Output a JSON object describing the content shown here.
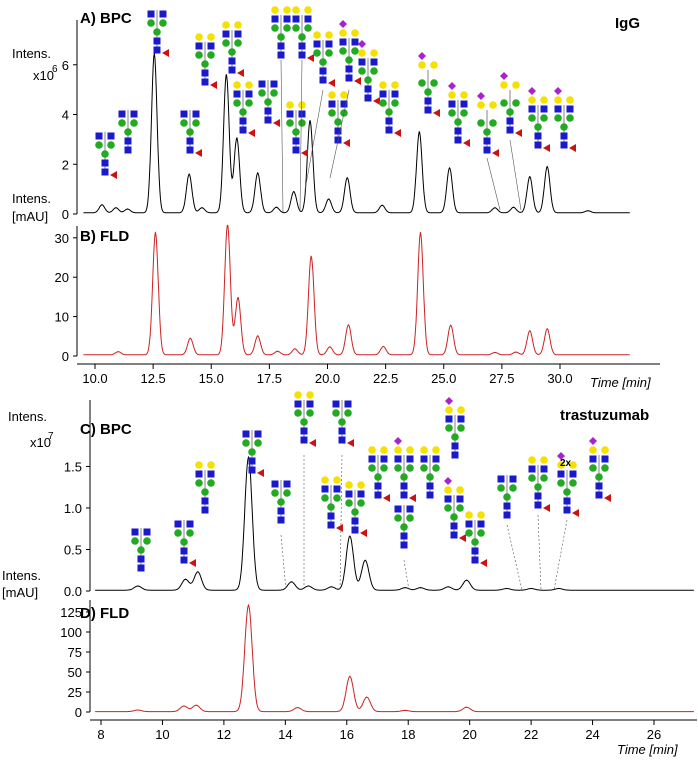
{
  "chart_data": [
    {
      "panel": "A",
      "type": "line",
      "title": "A) BPC",
      "sample": "IgG",
      "ylabel": "Intens.",
      "yunit": "x10",
      "yexp": "6",
      "ylim": [
        0,
        7.8
      ],
      "xlim": [
        9.5,
        33.0
      ],
      "yticks": [
        0,
        2,
        4,
        6
      ],
      "ytick_labels": [
        "0",
        "2",
        "4",
        "6"
      ],
      "color": "#000000",
      "baseline": 0.05,
      "peaks": [
        {
          "t": 10.3,
          "h": 0.32
        },
        {
          "t": 10.9,
          "h": 0.2
        },
        {
          "t": 11.4,
          "h": 0.15
        },
        {
          "t": 12.55,
          "h": 6.4
        },
        {
          "t": 14.05,
          "h": 1.55
        },
        {
          "t": 14.6,
          "h": 0.2
        },
        {
          "t": 15.65,
          "h": 5.55
        },
        {
          "t": 16.1,
          "h": 3.0
        },
        {
          "t": 17.0,
          "h": 1.6
        },
        {
          "t": 17.8,
          "h": 0.22
        },
        {
          "t": 18.55,
          "h": 0.85
        },
        {
          "t": 19.25,
          "h": 3.7
        },
        {
          "t": 20.05,
          "h": 0.55
        },
        {
          "t": 20.85,
          "h": 1.4
        },
        {
          "t": 22.35,
          "h": 0.3
        },
        {
          "t": 23.95,
          "h": 3.25
        },
        {
          "t": 25.25,
          "h": 1.8
        },
        {
          "t": 27.2,
          "h": 0.2
        },
        {
          "t": 28.0,
          "h": 0.22
        },
        {
          "t": 28.7,
          "h": 1.45
        },
        {
          "t": 29.45,
          "h": 1.85
        },
        {
          "t": 31.2,
          "h": 0.08
        }
      ]
    },
    {
      "panel": "B",
      "type": "line",
      "title": "B) FLD",
      "ylabel": "Intens.",
      "yunit": "[mAU]",
      "ylim": [
        0,
        33
      ],
      "xlim": [
        9.5,
        33.0
      ],
      "yticks": [
        0,
        10,
        20,
        30
      ],
      "ytick_labels": [
        "0",
        "10",
        "20",
        "30"
      ],
      "xticks": [
        10,
        12.5,
        15,
        17.5,
        20,
        22.5,
        25,
        27.5,
        30
      ],
      "xtick_labels": [
        "10.0",
        "12.5",
        "15.0",
        "17.5",
        "20.0",
        "22.5",
        "25.0",
        "27.5",
        "30.0"
      ],
      "xlabel": "Time [min]",
      "color": "#cc2222",
      "baseline": 0.3,
      "peaks": [
        {
          "t": 11.0,
          "h": 0.8
        },
        {
          "t": 12.6,
          "h": 31.0
        },
        {
          "t": 14.1,
          "h": 4.2
        },
        {
          "t": 15.7,
          "h": 33.0
        },
        {
          "t": 16.15,
          "h": 14.5
        },
        {
          "t": 17.0,
          "h": 4.8
        },
        {
          "t": 17.85,
          "h": 0.9
        },
        {
          "t": 18.6,
          "h": 1.5
        },
        {
          "t": 19.3,
          "h": 25.0
        },
        {
          "t": 20.1,
          "h": 2.0
        },
        {
          "t": 20.9,
          "h": 7.6
        },
        {
          "t": 22.4,
          "h": 2.1
        },
        {
          "t": 24.0,
          "h": 31.0
        },
        {
          "t": 25.3,
          "h": 7.5
        },
        {
          "t": 27.2,
          "h": 0.6
        },
        {
          "t": 28.1,
          "h": 0.7
        },
        {
          "t": 28.7,
          "h": 6.1
        },
        {
          "t": 29.45,
          "h": 6.6
        }
      ]
    },
    {
      "panel": "C",
      "type": "line",
      "title": "C) BPC",
      "sample": "trastuzumab",
      "ylabel": "Intens.",
      "yunit": "x10",
      "yexp": "7",
      "ylim": [
        0,
        2.3
      ],
      "xlim": [
        7.5,
        27.3
      ],
      "yticks": [
        0.0,
        0.5,
        1.0,
        1.5
      ],
      "ytick_labels": [
        "0.0",
        "0.5",
        "1.0",
        "1.5"
      ],
      "color": "#000000",
      "baseline": 0.01,
      "peaks": [
        {
          "t": 9.2,
          "h": 0.05
        },
        {
          "t": 10.75,
          "h": 0.13
        },
        {
          "t": 11.15,
          "h": 0.22
        },
        {
          "t": 12.8,
          "h": 1.6
        },
        {
          "t": 14.2,
          "h": 0.1
        },
        {
          "t": 14.75,
          "h": 0.05
        },
        {
          "t": 15.5,
          "h": 0.04
        },
        {
          "t": 16.1,
          "h": 0.65
        },
        {
          "t": 16.6,
          "h": 0.36
        },
        {
          "t": 17.9,
          "h": 0.03
        },
        {
          "t": 18.4,
          "h": 0.03
        },
        {
          "t": 19.3,
          "h": 0.04
        },
        {
          "t": 19.9,
          "h": 0.12
        },
        {
          "t": 21.2,
          "h": 0.02
        },
        {
          "t": 22.0,
          "h": 0.02
        },
        {
          "t": 22.9,
          "h": 0.02
        }
      ]
    },
    {
      "panel": "D",
      "type": "line",
      "title": "D) FLD",
      "ylabel": "",
      "ylim": [
        0,
        140
      ],
      "xlim": [
        7.5,
        27.3
      ],
      "yticks": [
        0,
        25,
        50,
        75,
        100,
        125
      ],
      "ytick_labels": [
        "0",
        "25",
        "50",
        "75",
        "100",
        "125"
      ],
      "xticks": [
        8,
        10,
        12,
        14,
        16,
        18,
        20,
        22,
        24,
        26
      ],
      "xtick_labels": [
        "8",
        "10",
        "12",
        "14",
        "16",
        "18",
        "20",
        "22",
        "24",
        "26"
      ],
      "xlabel": "Time [min]",
      "color": "#cc2222",
      "baseline": 0.5,
      "peaks": [
        {
          "t": 9.2,
          "h": 2.0
        },
        {
          "t": 10.7,
          "h": 7.0
        },
        {
          "t": 11.1,
          "h": 8.0
        },
        {
          "t": 12.8,
          "h": 133.0
        },
        {
          "t": 14.4,
          "h": 5.0
        },
        {
          "t": 16.1,
          "h": 44.0
        },
        {
          "t": 16.65,
          "h": 18.0
        },
        {
          "t": 17.9,
          "h": 1.5
        },
        {
          "t": 19.9,
          "h": 5.5
        }
      ]
    }
  ],
  "glycans_top": [
    {
      "t": 10.3,
      "core": "G0F-GN"
    },
    {
      "t": 10.9,
      "core": "G0-GN"
    },
    {
      "t": 12.55,
      "core": "G0F"
    },
    {
      "t": 14.05,
      "core": "Man5"
    },
    {
      "t": 14.6,
      "core": "G1F-GN"
    },
    {
      "t": 15.65,
      "core": "G1F"
    },
    {
      "t": 16.1,
      "core": "G1F'"
    },
    {
      "t": 17.0,
      "core": "G1"
    },
    {
      "t": 17.8,
      "core": "Man6"
    },
    {
      "t": 18.55,
      "core": "G2F"
    },
    {
      "t": 19.25,
      "core": "G2FB"
    },
    {
      "t": 20.05,
      "core": "A1F-GN"
    },
    {
      "t": 20.85,
      "core": "A1F"
    },
    {
      "t": 22.35,
      "core": "A1G1"
    },
    {
      "t": 23.95,
      "core": "A1"
    },
    {
      "t": 25.25,
      "core": "A1F'"
    },
    {
      "t": 27.2,
      "core": "A2F"
    },
    {
      "t": 28.0,
      "core": "A2"
    },
    {
      "t": 28.7,
      "core": "A2FB"
    },
    {
      "t": 29.45,
      "core": "A2F'"
    }
  ],
  "glycans_bottom": [
    {
      "t": 9.2,
      "core": "G0-GN"
    },
    {
      "t": 10.75,
      "core": "G0F-GN"
    },
    {
      "t": 11.15,
      "core": "G0"
    },
    {
      "t": 12.8,
      "core": "G0F"
    },
    {
      "t": 14.2,
      "core": "Man5"
    },
    {
      "t": 14.75,
      "core": "G1F"
    },
    {
      "t": 15.5,
      "core": "G0F+GN"
    },
    {
      "t": 16.1,
      "core": "G1"
    },
    {
      "t": 16.6,
      "core": "G1F'"
    },
    {
      "t": 17.9,
      "core": "A1F"
    },
    {
      "t": 18.4,
      "core": "Man6"
    },
    {
      "t": 18.6,
      "core": "G2F"
    },
    {
      "t": 19.3,
      "core": "A1"
    },
    {
      "t": 19.9,
      "core": "G2F'"
    },
    {
      "t": 21.2,
      "core": "Man7"
    },
    {
      "t": 22.0,
      "core": "A1G1F"
    },
    {
      "t": 22.9,
      "core": "Man8"
    },
    {
      "t": 24.1,
      "core": "A2F"
    }
  ],
  "glycan_annotation": "2x"
}
